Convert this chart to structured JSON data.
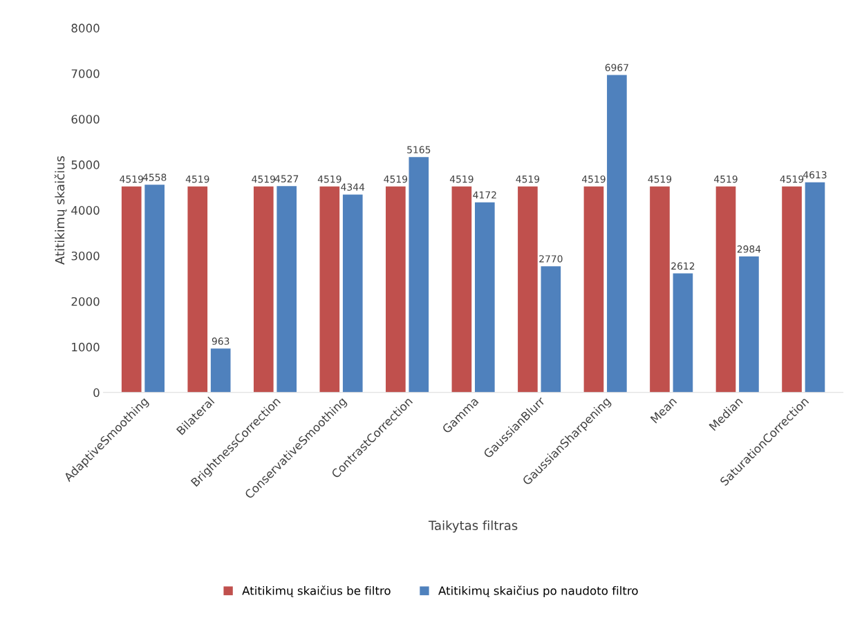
{
  "chart_data": {
    "type": "bar",
    "xlabel": "Taikytas filtras",
    "ylabel": "Atitikimų skaičius",
    "categories": [
      "AdaptiveSmoothing",
      "Bilateral",
      "BrightnessCorrection",
      "ConservativeSmoothing",
      "ContrastCorrection",
      "Gamma",
      "GaussianBlurr",
      "GaussianSharpening",
      "Mean",
      "Median",
      "SaturationCorrection"
    ],
    "series": [
      {
        "name": "Atitikimų skaičius be filtro",
        "color": "#c0504d",
        "values": [
          4519,
          4519,
          4519,
          4519,
          4519,
          4519,
          4519,
          4519,
          4519,
          4519,
          4519
        ]
      },
      {
        "name": "Atitikimų skaičius po naudoto filtro",
        "color": "#4f81bd",
        "values": [
          4558,
          963,
          4527,
          4344,
          5165,
          4172,
          2770,
          6967,
          2612,
          2984,
          4613
        ]
      }
    ],
    "ylim": [
      0,
      8000
    ],
    "yticks": [
      0,
      1000,
      2000,
      3000,
      4000,
      5000,
      6000,
      7000,
      8000
    ],
    "data_labels": true,
    "legend": "bottom",
    "grid": false
  }
}
